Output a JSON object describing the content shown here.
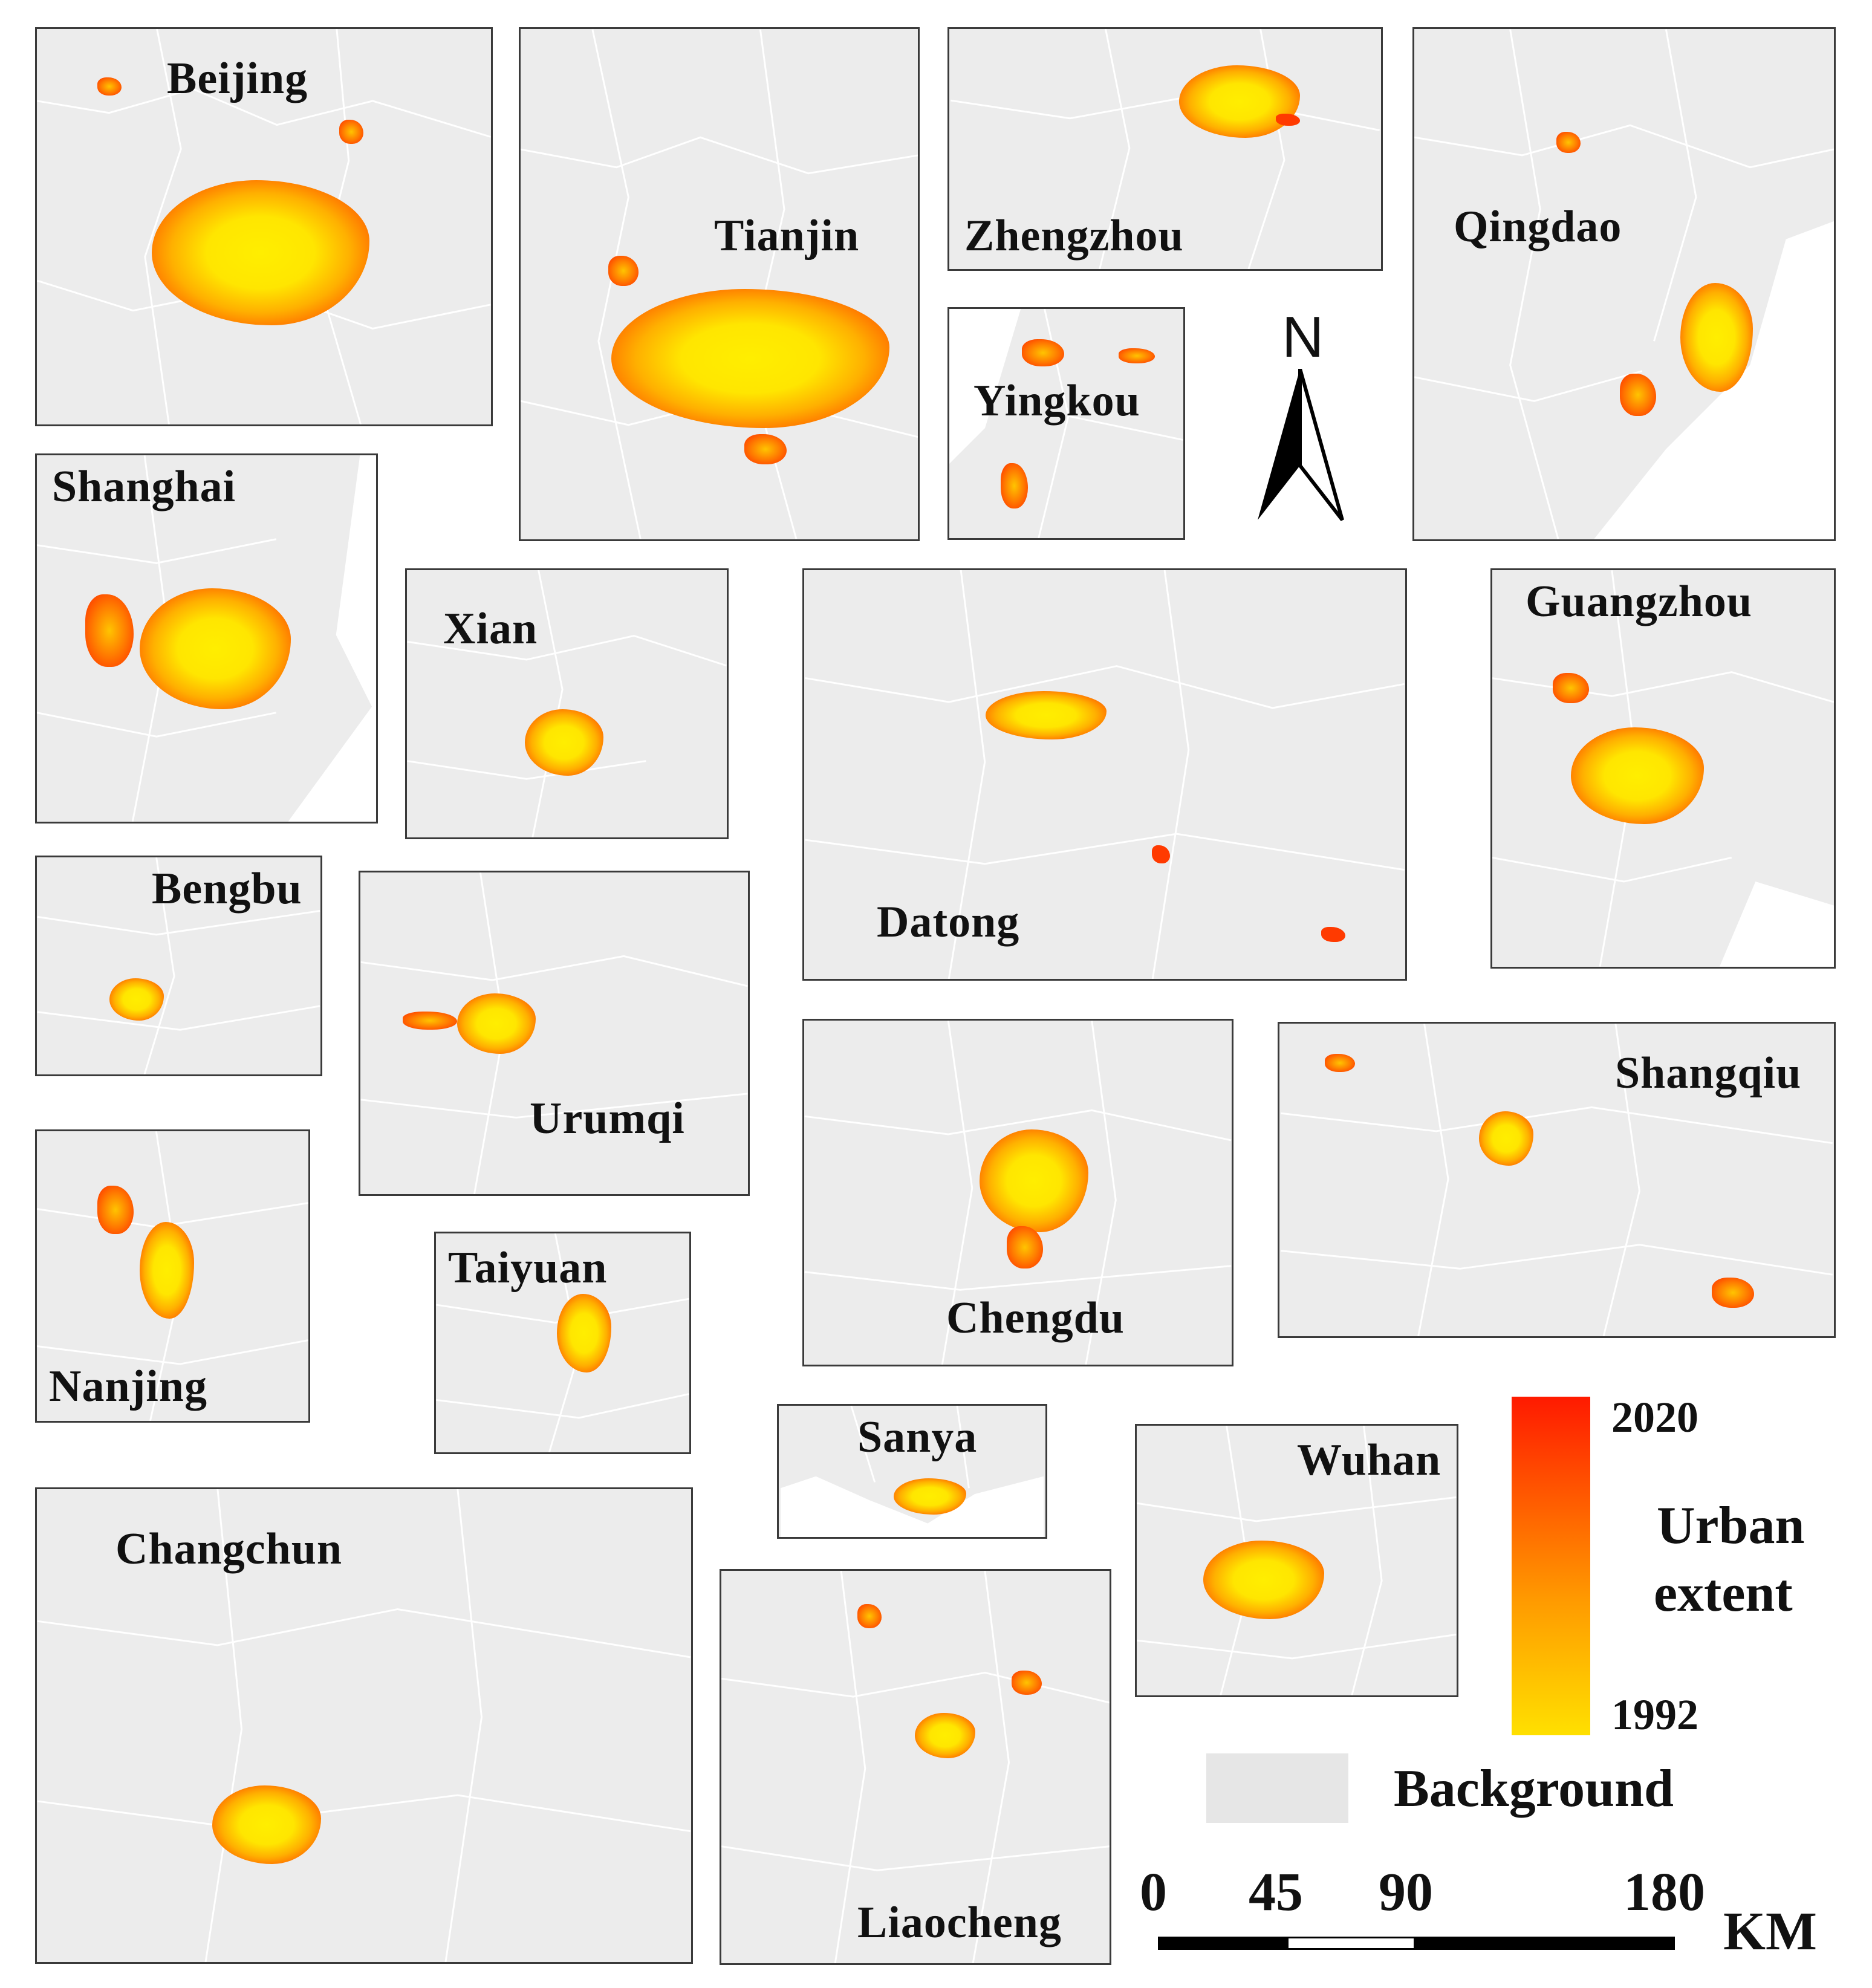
{
  "cities": {
    "beijing": "Beijing",
    "tianjin": "Tianjin",
    "zhengzhou": "Zhengzhou",
    "qingdao": "Qingdao",
    "yingkou": "Yingkou",
    "shanghai": "Shanghai",
    "xian": "Xian",
    "datong": "Datong",
    "guangzhou": "Guangzhou",
    "bengbu": "Bengbu",
    "urumqi": "Urumqi",
    "nanjing": "Nanjing",
    "chengdu": "Chengdu",
    "shangqiu": "Shangqiu",
    "taiyuan": "Taiyuan",
    "sanya": "Sanya",
    "wuhan": "Wuhan",
    "changchun": "Changchun",
    "liaocheng": "Liaocheng"
  },
  "north_arrow": {
    "label": "N"
  },
  "legend": {
    "year_top": "2020",
    "year_bottom": "1992",
    "title_line1": "Urban",
    "title_line2": "extent",
    "background_label": "Background",
    "colors": {
      "recent": "#ff1a00",
      "oldest": "#ffe000",
      "background": "#e6e6e6"
    }
  },
  "scale_bar": {
    "ticks": [
      "0",
      "45",
      "90",
      "180"
    ],
    "unit": "KM"
  }
}
